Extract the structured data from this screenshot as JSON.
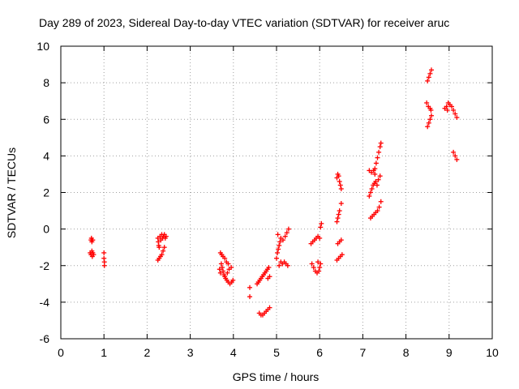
{
  "chart_data": {
    "type": "scatter",
    "title": "Day 289 of 2023, Sidereal Day-to-day VTEC variation (SDTVAR) for receiver aruc",
    "xlabel": "GPS time / hours",
    "ylabel": "SDTVAR / TECUs",
    "xlim": [
      0,
      10
    ],
    "ylim": [
      -6,
      10
    ],
    "xticks": [
      "0",
      "1",
      "2",
      "3",
      "4",
      "5",
      "6",
      "7",
      "8",
      "9",
      "10"
    ],
    "yticks": [
      "-6",
      "-4",
      "-2",
      "0",
      "2",
      "4",
      "6",
      "8",
      "10"
    ],
    "grid": true,
    "marker": "+",
    "color": "#ff0000",
    "series": [
      {
        "name": "",
        "points": [
          [
            0.7,
            -0.6
          ],
          [
            0.71,
            -0.5
          ],
          [
            0.72,
            -0.7
          ],
          [
            0.73,
            -0.6
          ],
          [
            0.74,
            -0.6
          ],
          [
            0.68,
            -1.3
          ],
          [
            0.7,
            -1.4
          ],
          [
            0.72,
            -1.2
          ],
          [
            0.74,
            -1.3
          ],
          [
            0.76,
            -1.4
          ],
          [
            0.73,
            -1.5
          ],
          [
            1.0,
            -1.3
          ],
          [
            1.0,
            -1.6
          ],
          [
            1.01,
            -1.8
          ],
          [
            1.01,
            -2.0
          ],
          [
            2.25,
            -0.5
          ],
          [
            2.26,
            -0.7
          ],
          [
            2.27,
            -0.9
          ],
          [
            2.28,
            -1.0
          ],
          [
            2.3,
            -0.4
          ],
          [
            2.32,
            -0.6
          ],
          [
            2.34,
            -0.3
          ],
          [
            2.36,
            -0.5
          ],
          [
            2.38,
            -0.4
          ],
          [
            2.4,
            -0.3
          ],
          [
            2.42,
            -0.5
          ],
          [
            2.44,
            -0.4
          ],
          [
            2.25,
            -1.7
          ],
          [
            2.28,
            -1.6
          ],
          [
            2.31,
            -1.5
          ],
          [
            2.34,
            -1.4
          ],
          [
            2.37,
            -1.2
          ],
          [
            2.4,
            -1.0
          ],
          [
            3.7,
            -1.3
          ],
          [
            3.73,
            -1.4
          ],
          [
            3.76,
            -1.5
          ],
          [
            3.8,
            -1.6
          ],
          [
            3.84,
            -1.8
          ],
          [
            3.88,
            -1.9
          ],
          [
            3.72,
            -1.9
          ],
          [
            3.74,
            -2.1
          ],
          [
            3.76,
            -2.3
          ],
          [
            3.78,
            -2.5
          ],
          [
            3.8,
            -2.6
          ],
          [
            3.82,
            -2.7
          ],
          [
            3.85,
            -2.8
          ],
          [
            3.88,
            -2.9
          ],
          [
            3.92,
            -3.0
          ],
          [
            3.96,
            -2.9
          ],
          [
            3.99,
            -2.8
          ],
          [
            3.95,
            -2.1
          ],
          [
            3.9,
            -2.2
          ],
          [
            3.86,
            -2.4
          ],
          [
            3.7,
            -2.4
          ],
          [
            3.68,
            -2.2
          ],
          [
            4.38,
            -3.2
          ],
          [
            4.38,
            -3.7
          ],
          [
            4.55,
            -3.0
          ],
          [
            4.58,
            -2.9
          ],
          [
            4.61,
            -2.8
          ],
          [
            4.64,
            -2.7
          ],
          [
            4.67,
            -2.6
          ],
          [
            4.7,
            -2.5
          ],
          [
            4.73,
            -2.4
          ],
          [
            4.76,
            -2.3
          ],
          [
            4.79,
            -2.2
          ],
          [
            4.82,
            -2.1
          ],
          [
            4.84,
            -2.6
          ],
          [
            4.8,
            -2.7
          ],
          [
            4.6,
            -4.6
          ],
          [
            4.64,
            -4.7
          ],
          [
            4.68,
            -4.7
          ],
          [
            4.72,
            -4.6
          ],
          [
            4.76,
            -4.5
          ],
          [
            4.8,
            -4.4
          ],
          [
            4.84,
            -4.3
          ],
          [
            5.0,
            -1.6
          ],
          [
            5.02,
            -1.3
          ],
          [
            5.04,
            -1.1
          ],
          [
            5.06,
            -0.9
          ],
          [
            5.08,
            -0.7
          ],
          [
            5.1,
            -0.5
          ],
          [
            5.03,
            -0.3
          ],
          [
            5.06,
            -2.0
          ],
          [
            5.1,
            -1.8
          ],
          [
            5.14,
            -1.9
          ],
          [
            5.18,
            -1.8
          ],
          [
            5.22,
            -1.9
          ],
          [
            5.26,
            -2.0
          ],
          [
            5.15,
            -0.6
          ],
          [
            5.2,
            -0.4
          ],
          [
            5.24,
            -0.2
          ],
          [
            5.28,
            0.0
          ],
          [
            5.8,
            -0.8
          ],
          [
            5.84,
            -0.7
          ],
          [
            5.88,
            -0.6
          ],
          [
            5.92,
            -0.5
          ],
          [
            5.96,
            -0.4
          ],
          [
            6.0,
            -0.5
          ],
          [
            6.02,
            0.1
          ],
          [
            6.04,
            0.3
          ],
          [
            5.82,
            -1.9
          ],
          [
            5.86,
            -2.1
          ],
          [
            5.9,
            -2.3
          ],
          [
            5.94,
            -2.4
          ],
          [
            5.98,
            -2.3
          ],
          [
            6.0,
            -2.1
          ],
          [
            6.02,
            -1.9
          ],
          [
            5.96,
            -1.8
          ],
          [
            6.4,
            2.8
          ],
          [
            6.42,
            3.0
          ],
          [
            6.44,
            2.9
          ],
          [
            6.46,
            2.6
          ],
          [
            6.48,
            2.4
          ],
          [
            6.5,
            2.2
          ],
          [
            6.4,
            0.4
          ],
          [
            6.42,
            0.6
          ],
          [
            6.44,
            0.8
          ],
          [
            6.46,
            1.0
          ],
          [
            6.5,
            1.4
          ],
          [
            6.42,
            -0.8
          ],
          [
            6.46,
            -0.7
          ],
          [
            6.5,
            -0.6
          ],
          [
            6.4,
            -1.7
          ],
          [
            6.44,
            -1.6
          ],
          [
            6.48,
            -1.5
          ],
          [
            6.52,
            -1.4
          ],
          [
            7.15,
            3.2
          ],
          [
            7.2,
            3.1
          ],
          [
            7.25,
            3.2
          ],
          [
            7.28,
            3.0
          ],
          [
            7.18,
            0.6
          ],
          [
            7.22,
            0.7
          ],
          [
            7.26,
            0.8
          ],
          [
            7.3,
            0.9
          ],
          [
            7.34,
            1.0
          ],
          [
            7.38,
            1.2
          ],
          [
            7.42,
            1.5
          ],
          [
            7.15,
            1.8
          ],
          [
            7.18,
            2.0
          ],
          [
            7.21,
            2.2
          ],
          [
            7.24,
            2.4
          ],
          [
            7.27,
            2.5
          ],
          [
            7.3,
            2.6
          ],
          [
            7.33,
            2.4
          ],
          [
            7.36,
            2.7
          ],
          [
            7.4,
            2.9
          ],
          [
            7.28,
            3.3
          ],
          [
            7.31,
            3.6
          ],
          [
            7.34,
            3.9
          ],
          [
            7.37,
            4.2
          ],
          [
            7.4,
            4.5
          ],
          [
            7.42,
            4.7
          ],
          [
            8.5,
            8.1
          ],
          [
            8.53,
            8.3
          ],
          [
            8.56,
            8.5
          ],
          [
            8.59,
            8.7
          ],
          [
            8.48,
            6.9
          ],
          [
            8.52,
            6.7
          ],
          [
            8.56,
            6.6
          ],
          [
            8.58,
            6.5
          ],
          [
            8.5,
            5.6
          ],
          [
            8.53,
            5.8
          ],
          [
            8.56,
            6.0
          ],
          [
            8.59,
            6.2
          ],
          [
            8.9,
            6.6
          ],
          [
            8.94,
            6.7
          ],
          [
            8.98,
            6.9
          ],
          [
            9.02,
            6.8
          ],
          [
            9.06,
            6.7
          ],
          [
            9.1,
            6.5
          ],
          [
            9.14,
            6.3
          ],
          [
            9.18,
            6.1
          ],
          [
            8.96,
            6.5
          ],
          [
            9.1,
            4.2
          ],
          [
            9.14,
            4.0
          ],
          [
            9.18,
            3.8
          ]
        ]
      }
    ]
  }
}
